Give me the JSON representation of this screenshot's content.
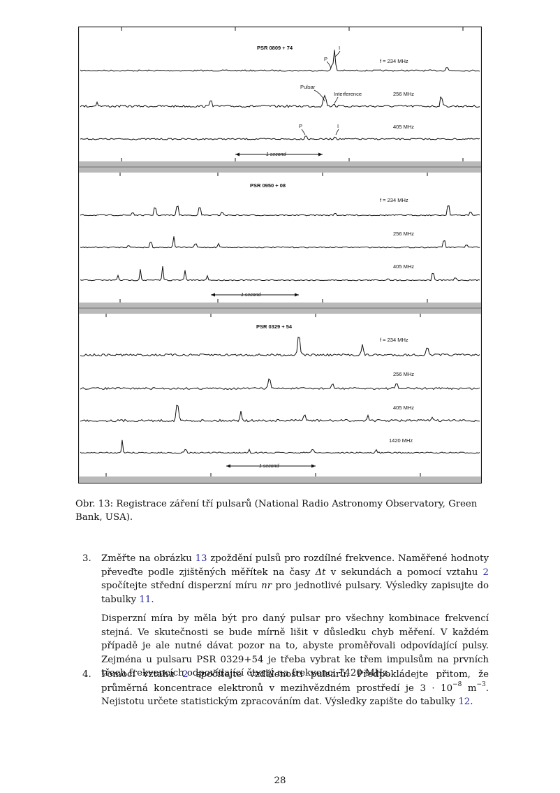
{
  "figure": {
    "panels": [
      {
        "pulsar": "PSR 0809 + 74",
        "traces": [
          {
            "freq": "f = 234 MHz",
            "annotations": [
              "P",
              "I"
            ]
          },
          {
            "freq": "256 MHz",
            "annotations": [
              "Pulsar",
              "Interference"
            ]
          },
          {
            "freq": "405 MHz",
            "annotations": [
              "P",
              "I"
            ]
          }
        ],
        "scale": "1 second"
      },
      {
        "pulsar": "PSR 0950 + 08",
        "traces": [
          {
            "freq": "f = 234 MHz"
          },
          {
            "freq": "256 MHz"
          },
          {
            "freq": "405 MHz"
          }
        ],
        "scale": "1 second"
      },
      {
        "pulsar": "PSR 0329 + 54",
        "traces": [
          {
            "freq": "f = 234 MHz"
          },
          {
            "freq": "256 MHz"
          },
          {
            "freq": "405 MHz"
          },
          {
            "freq": "1420 MHz"
          }
        ],
        "scale": "1 second"
      }
    ]
  },
  "caption": {
    "label": "Obr. 13:",
    "text": "Registrace záření tří pulsarů (National Radio Astronomy Observatory, Green Bank, USA)."
  },
  "items": [
    {
      "number": "3.",
      "p1": {
        "a": "Změřte na obrázku ",
        "ref1": "13",
        "b": " zpoždění pulsů pro rozdílné frekvence. Naměřené hodnoty pře­veďte podle zjištěných měřítek na časy ",
        "sym_dt": "Δt",
        "c": " v sekundách a pomocí vztahu ",
        "ref2": "2",
        "d": " spočítejte střední disperzní míru ",
        "sym_nr": "nr",
        "e": " pro jednotlivé pulsary. Výsledky zapisujte do tabulky ",
        "ref3": "11",
        "f": "."
      },
      "p2": "Disperzní míra by měla být pro daný pulsar pro všechny kombinace frekvencí stejná. Ve skutečnosti se bude mírně lišit v důsledku chyb měření. V každém případě je ale nutné dávat pozor na to, abyste proměřovali odpovídající pulsy. Zejména u pulsaru PSR 0329+54 je třeba vybrat ke třem impulsům na prvních třech frekvencích odpovídající čtvrtý na frekvenci 1420 MHz."
    },
    {
      "number": "4.",
      "p1": {
        "a": "Pomocí vztahu ",
        "ref1": "2",
        "b": " spočítejte vzdálenosti pulsarů. Předpokládejte přitom, že průměrná koncentrace elektronů v mezihvězdném prostředí je 3 · 10",
        "exp1": "−8",
        "c": " m",
        "exp2": "−3",
        "d": ". Nejistotu určete sta­tistickým zpracováním dat. Výsledky zapište do tabulky ",
        "ref2": "12",
        "e": "."
      }
    }
  ],
  "page_number": "28"
}
